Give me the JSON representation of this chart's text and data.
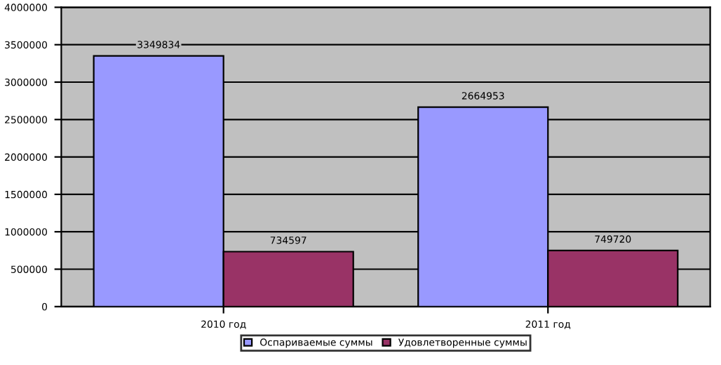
{
  "chart_data": {
    "type": "bar",
    "categories": [
      "2010 год",
      "2011 год"
    ],
    "series": [
      {
        "name": "Оспариваемые суммы",
        "color": "#9999ff",
        "values": [
          3349834,
          2664953
        ]
      },
      {
        "name": "Удовлетворенные суммы",
        "color": "#993366",
        "values": [
          734597,
          749720
        ]
      }
    ],
    "ylim": [
      0,
      4000000
    ],
    "yticks": [
      0,
      500000,
      1000000,
      1500000,
      2000000,
      2500000,
      3000000,
      3500000,
      4000000
    ],
    "grid": "y",
    "legend": "bottom",
    "data_labels": true
  }
}
